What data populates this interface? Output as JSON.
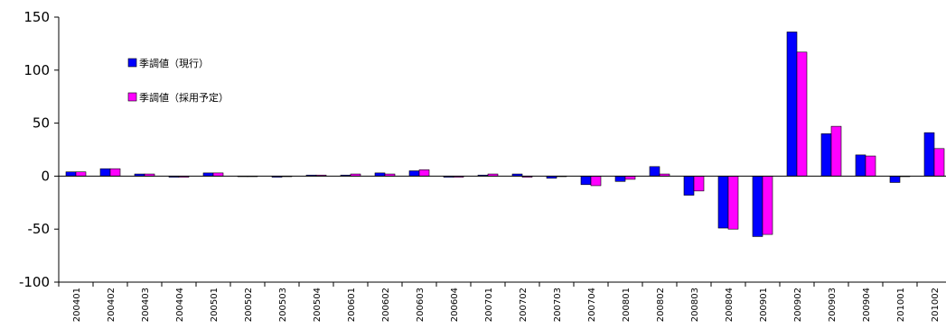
{
  "chart_data": {
    "type": "bar",
    "categories": [
      "200401",
      "200402",
      "200403",
      "200404",
      "200501",
      "200502",
      "200503",
      "200504",
      "200601",
      "200602",
      "200603",
      "200604",
      "200701",
      "200702",
      "200703",
      "200704",
      "200801",
      "200802",
      "200803",
      "200804",
      "200901",
      "200902",
      "200903",
      "200904",
      "201001",
      "201002"
    ],
    "series": [
      {
        "name": "季調値（現行）",
        "color": "#0000ff",
        "values": [
          4,
          7,
          2,
          -1,
          3,
          0,
          -1,
          1,
          1,
          3,
          5,
          -1,
          1,
          2,
          -2,
          -8,
          -5,
          9,
          -18,
          -49,
          -57,
          136,
          40,
          20,
          -6,
          41
        ]
      },
      {
        "name": "季調値（採用予定）",
        "color": "#ff00ff",
        "values": [
          4,
          7,
          2,
          -1,
          3,
          0,
          0,
          1,
          2,
          2,
          6,
          -1,
          2,
          -1,
          0,
          -9,
          -3,
          2,
          -14,
          -50,
          -55,
          117,
          47,
          19,
          0,
          26
        ]
      }
    ],
    "ylim": [
      -100,
      150
    ],
    "yticks": [
      "150",
      "100",
      "50",
      "0",
      "-50",
      "-100"
    ],
    "ytick_values": [
      150,
      100,
      50,
      0,
      -50,
      -100
    ],
    "grid": false,
    "legend_position": "top-left inside plot"
  }
}
